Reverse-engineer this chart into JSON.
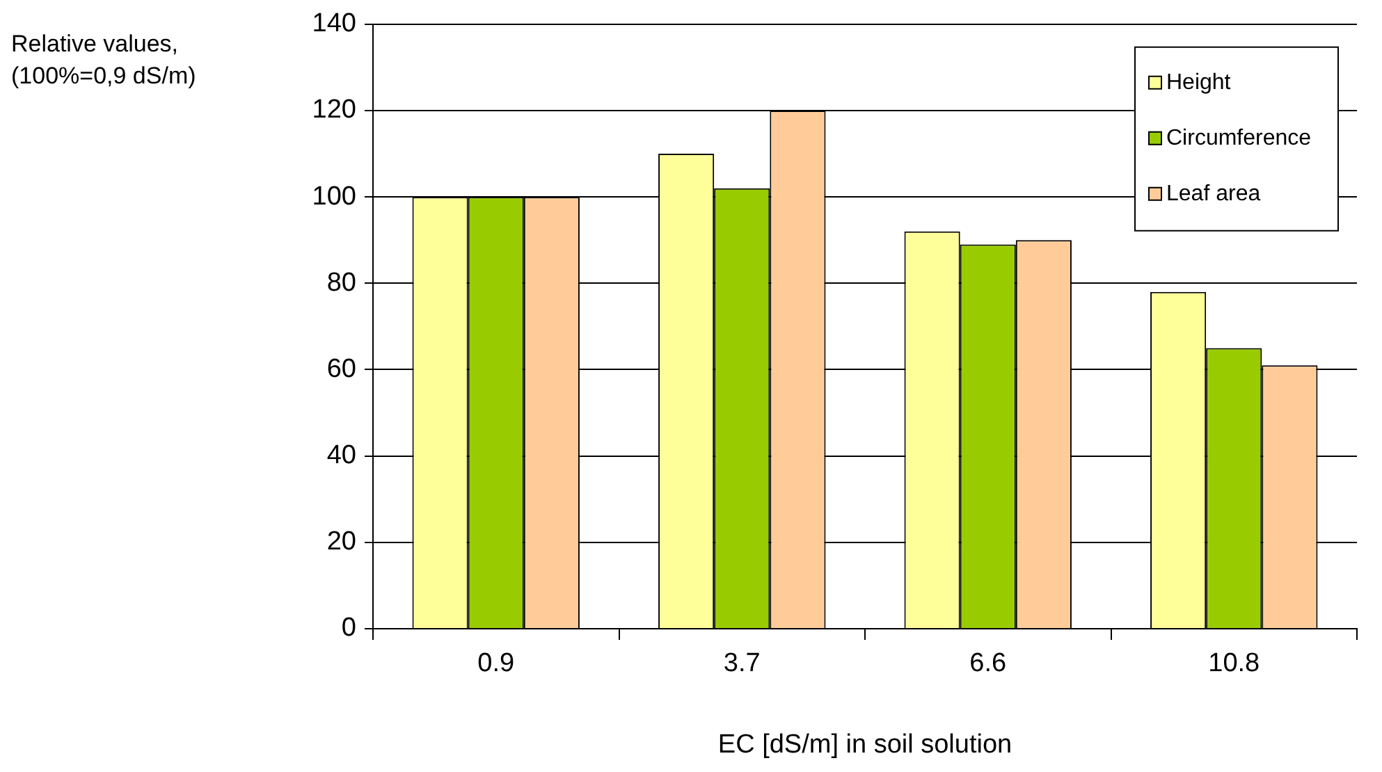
{
  "chart_data": {
    "type": "bar",
    "ylabel": "Relative values, (100%=0,9 dS/m)",
    "xlabel": "EC [dS/m] in soil solution",
    "categories": [
      "0.9",
      "3.7",
      "6.6",
      "10.8"
    ],
    "series": [
      {
        "name": "Height",
        "color": "#ffff99",
        "values": [
          100,
          110,
          92,
          78
        ]
      },
      {
        "name": "Circumference",
        "color": "#99cc00",
        "values": [
          100,
          102,
          89,
          65
        ]
      },
      {
        "name": "Leaf area",
        "color": "#ffcc99",
        "values": [
          100,
          120,
          90,
          61
        ]
      }
    ],
    "ylim": [
      0,
      140
    ],
    "yticks": [
      0,
      20,
      40,
      60,
      80,
      100,
      120,
      140
    ],
    "grid": "y",
    "legend": "top right"
  }
}
